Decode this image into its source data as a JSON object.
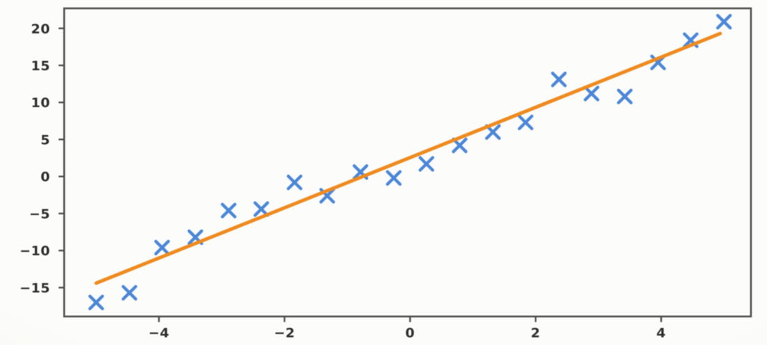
{
  "chart_data": {
    "type": "scatter",
    "title": "",
    "subtitle": "",
    "xlabel": "",
    "ylabel": "",
    "grid": false,
    "legend": null,
    "xlim": [
      -5.51,
      5.43
    ],
    "ylim": [
      -18.9,
      22.7
    ],
    "x_ticks": [
      {
        "v": -4,
        "label": "−4"
      },
      {
        "v": -2,
        "label": "−2"
      },
      {
        "v": 0,
        "label": "0"
      },
      {
        "v": 2,
        "label": "2"
      },
      {
        "v": 4,
        "label": "4"
      }
    ],
    "y_ticks": [
      {
        "v": -15,
        "label": "−15"
      },
      {
        "v": -10,
        "label": "−10"
      },
      {
        "v": -5,
        "label": "−5"
      },
      {
        "v": 0,
        "label": "0"
      },
      {
        "v": 5,
        "label": "5"
      },
      {
        "v": 10,
        "label": "10"
      },
      {
        "v": 15,
        "label": "15"
      },
      {
        "v": 20,
        "label": "20"
      }
    ],
    "series": [
      {
        "name": "scatter-points",
        "type": "scatter",
        "marker": "x",
        "color": "#4c87d7",
        "x": [
          -5.0,
          -4.47,
          -3.95,
          -3.42,
          -2.89,
          -2.37,
          -1.84,
          -1.32,
          -0.79,
          -0.26,
          0.26,
          0.79,
          1.32,
          1.84,
          2.37,
          2.89,
          3.42,
          3.95,
          4.47,
          5.0
        ],
        "y": [
          -17.0,
          -15.7,
          -9.6,
          -8.2,
          -4.6,
          -4.4,
          -0.8,
          -2.6,
          0.6,
          -0.2,
          1.7,
          4.2,
          6.0,
          7.3,
          13.1,
          11.2,
          10.8,
          15.4,
          18.4,
          20.9
        ]
      },
      {
        "name": "fit-line",
        "type": "line",
        "color": "#ef8a1e",
        "x": [
          -5.0,
          4.94
        ],
        "y": [
          -14.4,
          19.3
        ]
      }
    ],
    "colors": {
      "marker": "#4c87d7",
      "line": "#ef8a1e",
      "spine": "#4e4e4e",
      "tick_mark": "#4e4e4e",
      "tick_label": "#2e2e2e",
      "background": "#f7f7f4",
      "plot_background": "#fcfcfb"
    }
  }
}
